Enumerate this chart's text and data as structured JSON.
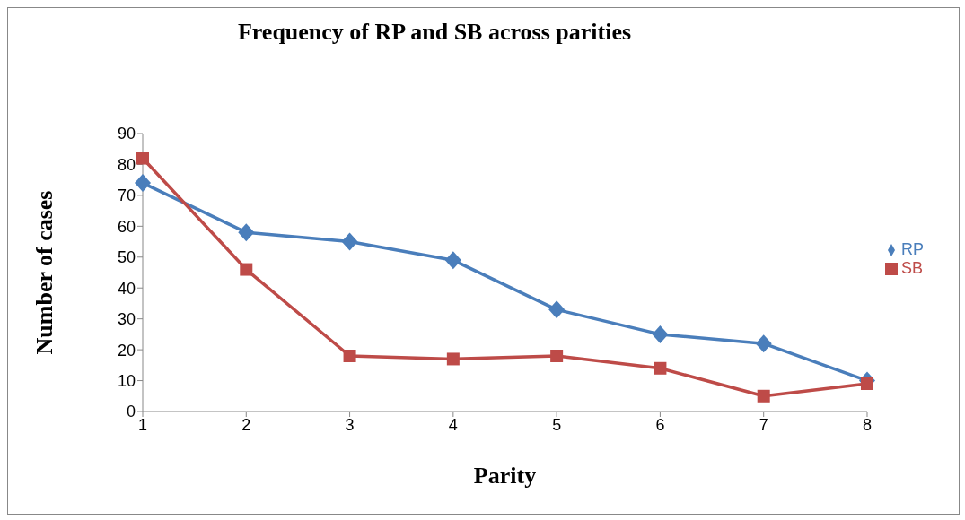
{
  "chart_data": {
    "type": "line",
    "title": "Frequency of RP and SB across parities",
    "xlabel": "Parity",
    "ylabel": "Number of cases",
    "categories": [
      "1",
      "2",
      "3",
      "4",
      "5",
      "6",
      "7",
      "8"
    ],
    "series": [
      {
        "name": "RP",
        "color": "#4a7ebb",
        "marker": "diamond",
        "values": [
          74,
          58,
          55,
          49,
          33,
          25,
          22,
          10
        ]
      },
      {
        "name": "SB",
        "color": "#be4b48",
        "marker": "square",
        "values": [
          82,
          46,
          18,
          17,
          18,
          14,
          5,
          9
        ]
      }
    ],
    "ylim": [
      0,
      90
    ],
    "yticks": [
      0,
      10,
      20,
      30,
      40,
      50,
      60,
      70,
      80,
      90
    ],
    "grid": false,
    "legend": "right",
    "line_style": "solid"
  }
}
